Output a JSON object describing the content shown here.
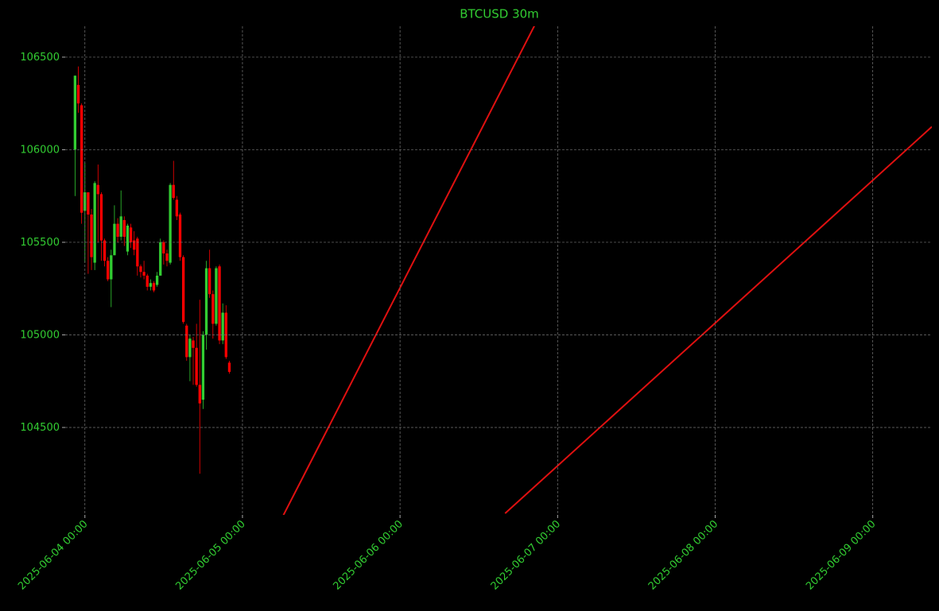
{
  "chart_data": {
    "type": "candlestick",
    "title": "BTCUSD 30m",
    "x": [
      "2025-06-03 22:30",
      "2025-06-03 23:00",
      "2025-06-03 23:30",
      "2025-06-04 00:00",
      "2025-06-04 00:30",
      "2025-06-04 01:00",
      "2025-06-04 01:30",
      "2025-06-04 02:00",
      "2025-06-04 02:30",
      "2025-06-04 03:00",
      "2025-06-04 03:30",
      "2025-06-04 04:00",
      "2025-06-04 04:30",
      "2025-06-04 05:00",
      "2025-06-04 05:30",
      "2025-06-04 06:00",
      "2025-06-04 06:30",
      "2025-06-04 07:00",
      "2025-06-04 07:30",
      "2025-06-04 08:00",
      "2025-06-04 08:30",
      "2025-06-04 09:00",
      "2025-06-04 09:30",
      "2025-06-04 10:00",
      "2025-06-04 10:30",
      "2025-06-04 11:00",
      "2025-06-04 11:30",
      "2025-06-04 12:00",
      "2025-06-04 12:30",
      "2025-06-04 13:00",
      "2025-06-04 13:30",
      "2025-06-04 14:00",
      "2025-06-04 14:30",
      "2025-06-04 15:00",
      "2025-06-04 15:30",
      "2025-06-04 16:00",
      "2025-06-04 16:30",
      "2025-06-04 17:00",
      "2025-06-04 17:30",
      "2025-06-04 18:00",
      "2025-06-04 18:30",
      "2025-06-04 19:00",
      "2025-06-04 19:30",
      "2025-06-04 20:00",
      "2025-06-04 20:30",
      "2025-06-04 21:00",
      "2025-06-04 21:30",
      "2025-06-04 22:00"
    ],
    "open": [
      106000,
      106350,
      106240,
      105670,
      105770,
      105650,
      105390,
      105810,
      105760,
      105510,
      105400,
      105300,
      105430,
      105600,
      105530,
      105620,
      105450,
      105580,
      105510,
      105520,
      105370,
      105340,
      105320,
      105260,
      105280,
      105270,
      105320,
      105500,
      105440,
      105390,
      105810,
      105730,
      105650,
      105420,
      105050,
      104880,
      104970,
      104930,
      104730,
      104650,
      105000,
      105360,
      105220,
      105060,
      105370,
      104970,
      105120,
      104850
    ],
    "high": [
      106400,
      106450,
      106250,
      105930,
      105770,
      105680,
      105830,
      105920,
      105770,
      105520,
      105420,
      105460,
      105700,
      105630,
      105780,
      105640,
      105600,
      105600,
      105560,
      105530,
      105380,
      105400,
      105330,
      105300,
      105290,
      105340,
      105520,
      105510,
      105460,
      105820,
      105940,
      105750,
      105660,
      105430,
      105060,
      105000,
      104990,
      105060,
      105190,
      105020,
      105400,
      105460,
      105240,
      105370,
      105380,
      105170,
      105160,
      104860
    ],
    "low": [
      105750,
      106200,
      105600,
      105390,
      105330,
      105350,
      105350,
      105500,
      105400,
      105370,
      105290,
      105150,
      105430,
      105500,
      105510,
      105480,
      105430,
      105470,
      105430,
      105320,
      105310,
      105300,
      105240,
      105240,
      105230,
      105260,
      105320,
      105380,
      105370,
      105380,
      105730,
      105620,
      105400,
      105060,
      104860,
      104750,
      104730,
      104720,
      104250,
      104600,
      104920,
      105200,
      104980,
      105050,
      104950,
      104950,
      104870,
      104790
    ],
    "close": [
      106400,
      106250,
      105660,
      105770,
      105650,
      105420,
      105820,
      105760,
      105510,
      105400,
      105300,
      105430,
      105600,
      105530,
      105640,
      105530,
      105590,
      105500,
      105460,
      105370,
      105340,
      105320,
      105260,
      105280,
      105240,
      105320,
      105500,
      105440,
      105400,
      105810,
      105740,
      105640,
      105420,
      105070,
      104880,
      104980,
      104930,
      104730,
      104630,
      105000,
      105360,
      105220,
      105060,
      105360,
      104970,
      105120,
      104880,
      104800
    ],
    "up_color": "#32cd32",
    "down_color": "#ff0000",
    "lines": [
      {
        "x": [
          "2025-06-05 06:00",
          "2025-06-06 21:00"
        ],
        "values": [
          104010,
          106706
        ],
        "color": "#e01010"
      },
      {
        "x": [
          "2025-06-06 16:00",
          "2025-06-09 09:00"
        ],
        "values": [
          104036,
          106124
        ],
        "color": "#e01010"
      }
    ],
    "xlim": [
      "2025-06-03 21:00",
      "2025-06-09 09:00"
    ],
    "xticks": [
      "2025-06-04 00:00",
      "2025-06-05 00:00",
      "2025-06-06 00:00",
      "2025-06-07 00:00",
      "2025-06-08 00:00",
      "2025-06-09 00:00"
    ],
    "ylim": [
      104028,
      106667
    ],
    "yticks": [
      104500,
      105000,
      105500,
      106000,
      106500
    ],
    "grid": true
  }
}
